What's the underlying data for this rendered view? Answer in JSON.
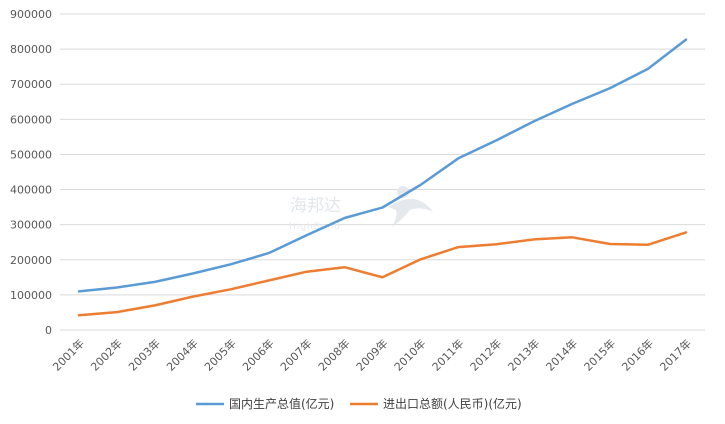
{
  "chart_data": {
    "type": "line",
    "title": "",
    "xlabel": "",
    "ylabel": "",
    "ylim": [
      0,
      900000
    ],
    "yticks": [
      0,
      100000,
      200000,
      300000,
      400000,
      500000,
      600000,
      700000,
      800000,
      900000
    ],
    "grid": "horizontal",
    "legend_position": "bottom",
    "categories": [
      "2001年",
      "2002年",
      "2003年",
      "2004年",
      "2005年",
      "2006年",
      "2007年",
      "2008年",
      "2009年",
      "2010年",
      "2011年",
      "2012年",
      "2013年",
      "2014年",
      "2015年",
      "2016年",
      "2017年"
    ],
    "series": [
      {
        "name": "国内生产总值(亿元)",
        "color": "#5b9bd5",
        "values": [
          110000,
          121000,
          137000,
          161000,
          187000,
          219000,
          270000,
          319000,
          349000,
          413000,
          489000,
          540000,
          595000,
          644000,
          689000,
          744000,
          827000
        ]
      },
      {
        "name": "进出口总额(人民币)(亿元)",
        "color": "#ed7d31",
        "values": [
          42000,
          51000,
          70000,
          95000,
          116000,
          141000,
          166000,
          179000,
          150000,
          201000,
          236000,
          244000,
          258000,
          264000,
          245000,
          243000,
          278000
        ]
      }
    ]
  },
  "watermark": {
    "text": "海邦达",
    "subtext": "HighBond",
    "icon": "runner-logo-icon"
  }
}
